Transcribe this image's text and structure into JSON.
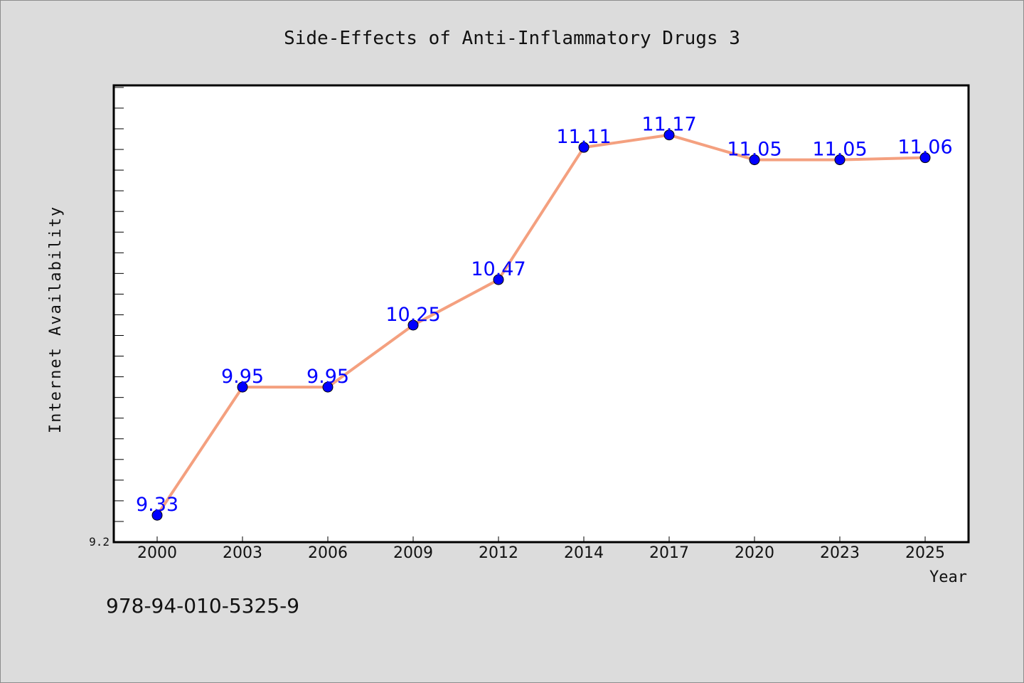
{
  "colors": {
    "background": "#dcdcdc",
    "plot_background": "#ffffff",
    "line": "#f4a07f",
    "marker": "#0000ff",
    "data_label": "#0000ff",
    "text": "#111111"
  },
  "chart_data": {
    "type": "line",
    "title": "Side-Effects of Anti-Inflammatory Drugs 3",
    "xlabel": "Year",
    "ylabel": "Internet Availability",
    "categories": [
      "2000",
      "2003",
      "2006",
      "2009",
      "2012",
      "2014",
      "2017",
      "2020",
      "2023",
      "2025"
    ],
    "series": [
      {
        "values": [
          9.33,
          9.95,
          9.95,
          10.25,
          10.47,
          11.11,
          11.17,
          11.05,
          11.05,
          11.06
        ]
      }
    ],
    "data_labels": [
      "9.33",
      "9.95",
      "9.95",
      "10.25",
      "10.47",
      "11.11",
      "11.17",
      "11.05",
      "11.05",
      "11.06"
    ],
    "ylim": [
      9.2,
      11.41
    ],
    "y_tick_labels": [
      "9.2"
    ],
    "y_minor_tick_step": 0.1,
    "grid": false,
    "legend": "none"
  },
  "footer": {
    "isbn": "978-94-010-5325-9"
  }
}
